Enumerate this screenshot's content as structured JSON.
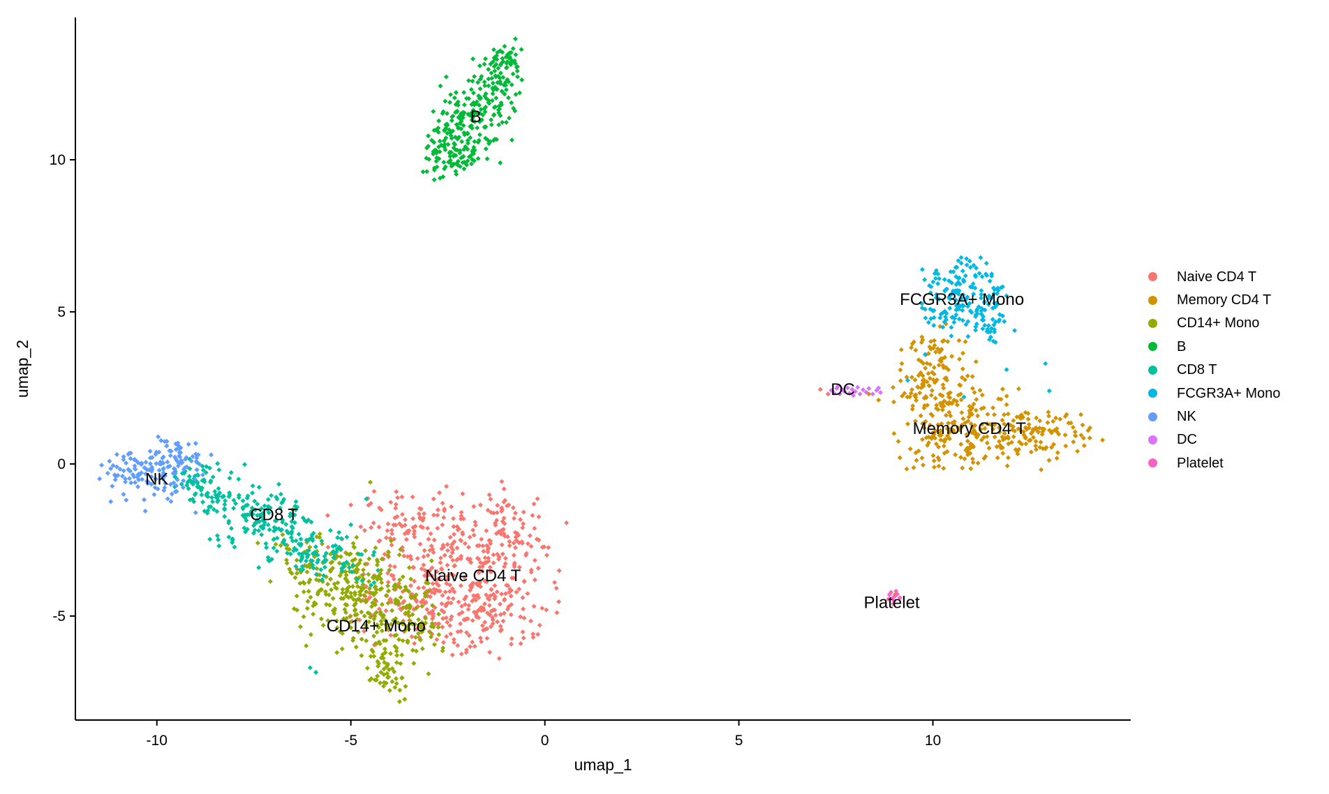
{
  "chart_data": {
    "type": "scatter",
    "title": "",
    "xlabel": "umap_1",
    "ylabel": "umap_2",
    "xlim": [
      -12.1,
      15.1
    ],
    "ylim": [
      -8.42,
      14.68
    ],
    "x_ticks": [
      "-10",
      "-5",
      "0",
      "5",
      "10"
    ],
    "x_tick_values": [
      -10,
      -5,
      0,
      5,
      10
    ],
    "y_ticks": [
      "-5",
      "0",
      "5",
      "10"
    ],
    "y_tick_values": [
      -5,
      0,
      5,
      10
    ],
    "grid": false,
    "legend_position": "right",
    "point_shape": "diamond",
    "axis_color": "#000000",
    "clusters": [
      {
        "name": "Naive CD4 T",
        "color": "#F8766D",
        "label": [
          -1.85,
          -3.67
        ],
        "blobs": [
          [
            -2.0,
            -3.2,
            1.15,
            1.15,
            260
          ],
          [
            -3.3,
            -4.6,
            0.8,
            0.8,
            120
          ],
          [
            -1.3,
            -5.0,
            0.7,
            0.6,
            80
          ],
          [
            -3.7,
            -1.9,
            0.8,
            0.55,
            60
          ],
          [
            -1.0,
            -2.2,
            0.6,
            0.6,
            45
          ]
        ],
        "strays": [
          [
            7.1,
            2.45
          ],
          [
            7.3,
            2.3
          ],
          [
            -5.0,
            -1.35
          ],
          [
            0.05,
            -3.0
          ],
          [
            -0.3,
            -5.7
          ],
          [
            -4.4,
            -0.9
          ]
        ]
      },
      {
        "name": "Memory CD4 T",
        "color": "#D39200",
        "label": [
          10.94,
          1.17
        ],
        "blobs": [
          [
            9.9,
            2.7,
            0.5,
            0.7,
            90
          ],
          [
            11.0,
            1.5,
            0.8,
            0.8,
            140
          ],
          [
            12.6,
            0.9,
            0.8,
            0.5,
            110
          ],
          [
            10.4,
            0.6,
            0.6,
            0.5,
            50
          ],
          [
            10.2,
            3.8,
            0.3,
            0.4,
            25
          ]
        ],
        "strays": [
          [
            8.35,
            2.3
          ],
          [
            8.6,
            2.1
          ],
          [
            14.0,
            1.1
          ],
          [
            13.9,
            0.6
          ],
          [
            9.0,
            1.0
          ],
          [
            9.2,
            3.3
          ],
          [
            9.02,
            -4.3
          ]
        ]
      },
      {
        "name": "CD14+ Mono",
        "color": "#93AA00",
        "label": [
          -4.35,
          -5.32
        ],
        "blobs": [
          [
            -4.6,
            -4.5,
            0.8,
            0.85,
            230
          ],
          [
            -5.4,
            -3.4,
            0.7,
            0.6,
            70
          ],
          [
            -3.7,
            -5.8,
            0.55,
            0.6,
            70
          ],
          [
            -4.1,
            -6.9,
            0.35,
            0.4,
            35
          ],
          [
            -6.2,
            -3.0,
            0.5,
            0.45,
            25
          ]
        ],
        "strays": [
          [
            -7.4,
            -2.6
          ],
          [
            -6.5,
            -1.5
          ],
          [
            -5.8,
            -2.3
          ],
          [
            -3.0,
            -6.9
          ],
          [
            -4.5,
            -0.6
          ]
        ]
      },
      {
        "name": "B",
        "color": "#00BA38",
        "label": [
          -1.78,
          11.42
        ],
        "blobs": [
          [
            -2.35,
            10.4,
            0.38,
            0.5,
            110
          ],
          [
            -1.8,
            11.5,
            0.45,
            0.55,
            130
          ],
          [
            -1.25,
            12.7,
            0.3,
            0.45,
            70
          ],
          [
            -0.95,
            13.4,
            0.18,
            0.25,
            25
          ]
        ],
        "strays": [
          [
            -2.7,
            9.4
          ],
          [
            -1.15,
            9.9
          ],
          [
            -0.65,
            12.2
          ]
        ]
      },
      {
        "name": "CD8 T",
        "color": "#00C19F",
        "label": [
          -6.98,
          -1.67
        ],
        "blobs": [
          [
            -8.5,
            -0.9,
            0.5,
            0.45,
            70
          ],
          [
            -7.4,
            -1.8,
            0.6,
            0.5,
            100
          ],
          [
            -6.3,
            -2.6,
            0.6,
            0.45,
            85
          ],
          [
            -5.3,
            -3.2,
            0.45,
            0.4,
            35
          ],
          [
            -9.2,
            -0.3,
            0.3,
            0.3,
            25
          ]
        ],
        "strays": [
          [
            -6.05,
            -6.7
          ],
          [
            -5.9,
            -6.85
          ],
          [
            -4.4,
            -3.9
          ],
          [
            -5.0,
            -2.0
          ],
          [
            -4.4,
            -2.9
          ],
          [
            -4.3,
            -3.5
          ],
          [
            -4.6,
            -1.15
          ]
        ]
      },
      {
        "name": "FCGR3A+ Mono",
        "color": "#00B9E3",
        "label": [
          10.75,
          5.41
        ],
        "blobs": [
          [
            10.75,
            6.1,
            0.45,
            0.35,
            55
          ],
          [
            10.9,
            5.3,
            0.6,
            0.45,
            90
          ],
          [
            11.2,
            4.5,
            0.5,
            0.3,
            30
          ],
          [
            10.3,
            4.9,
            0.3,
            0.3,
            15
          ]
        ],
        "strays": [
          [
            11.9,
            3.1
          ],
          [
            9.35,
            2.75
          ],
          [
            10.8,
            2.2
          ],
          [
            12.9,
            3.3
          ],
          [
            13.0,
            2.4
          ],
          [
            9.8,
            3.6
          ]
        ]
      },
      {
        "name": "NK",
        "color": "#619CFF",
        "label": [
          -10.0,
          -0.5
        ],
        "blobs": [
          [
            -10.0,
            -0.2,
            0.55,
            0.5,
            120
          ],
          [
            -10.9,
            -0.3,
            0.3,
            0.4,
            25
          ],
          [
            -9.4,
            0.35,
            0.3,
            0.25,
            20
          ]
        ],
        "strays": [
          [
            -9.0,
            -1.6
          ],
          [
            -10.3,
            -1.55
          ],
          [
            -8.6,
            0.3
          ]
        ]
      },
      {
        "name": "DC",
        "color": "#DB72FB",
        "label": [
          7.68,
          2.45
        ],
        "blobs": [],
        "strays": [
          [
            7.38,
            2.42
          ],
          [
            7.45,
            2.33
          ],
          [
            7.52,
            2.48
          ],
          [
            7.6,
            2.3
          ],
          [
            7.66,
            2.45
          ],
          [
            7.72,
            2.38
          ],
          [
            7.8,
            2.5
          ],
          [
            7.85,
            2.32
          ],
          [
            7.92,
            2.45
          ],
          [
            8.0,
            2.38
          ],
          [
            8.06,
            2.52
          ],
          [
            8.12,
            2.3
          ],
          [
            8.2,
            2.44
          ],
          [
            8.28,
            2.36
          ],
          [
            8.35,
            2.48
          ],
          [
            8.45,
            2.3
          ],
          [
            8.55,
            2.42
          ],
          [
            8.65,
            2.35
          ],
          [
            7.55,
            2.55
          ],
          [
            7.95,
            2.25
          ],
          [
            8.6,
            2.5
          ]
        ]
      },
      {
        "name": "Platelet",
        "color": "#FF61C3",
        "label": [
          8.94,
          -4.56
        ],
        "blobs": [],
        "strays": [
          [
            8.88,
            -4.3
          ],
          [
            8.95,
            -4.42
          ],
          [
            9.02,
            -4.35
          ],
          [
            9.08,
            -4.28
          ],
          [
            8.92,
            -4.22
          ],
          [
            9.0,
            -4.5
          ],
          [
            9.15,
            -4.4
          ],
          [
            8.85,
            -4.45
          ],
          [
            9.05,
            -4.18
          ],
          [
            8.98,
            -4.6
          ]
        ]
      }
    ],
    "legend_items": [
      {
        "label": "Naive CD4 T",
        "color": "#F8766D"
      },
      {
        "label": "Memory CD4 T",
        "color": "#D39200"
      },
      {
        "label": "CD14+ Mono",
        "color": "#93AA00"
      },
      {
        "label": "B",
        "color": "#00BA38"
      },
      {
        "label": "CD8 T",
        "color": "#00C19F"
      },
      {
        "label": "FCGR3A+ Mono",
        "color": "#00B9E3"
      },
      {
        "label": "NK",
        "color": "#619CFF"
      },
      {
        "label": "DC",
        "color": "#DB72FB"
      },
      {
        "label": "Platelet",
        "color": "#FF61C3"
      }
    ]
  }
}
